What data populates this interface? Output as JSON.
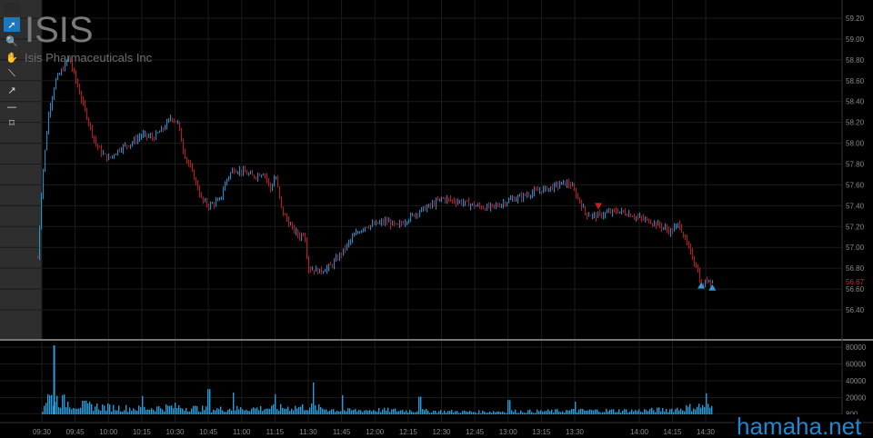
{
  "header": {
    "ticker": "ISIS",
    "company": "Isis Pharmaceuticals Inc"
  },
  "watermark": "hamaha.net",
  "toolbar": [
    {
      "name": "pointer-tool-icon",
      "glyph": "➚",
      "active": true
    },
    {
      "name": "zoom-tool-icon",
      "glyph": "🔍",
      "active": false
    },
    {
      "name": "pan-hand-tool-icon",
      "glyph": "✋",
      "active": false
    },
    {
      "name": "line-tool-icon",
      "glyph": "⟍",
      "active": false
    },
    {
      "name": "arrow-tool-icon",
      "glyph": "↗",
      "active": false
    },
    {
      "name": "horizontal-line-tool-icon",
      "glyph": "—",
      "active": false
    },
    {
      "name": "rectangle-tool-icon",
      "glyph": "⌑",
      "active": false
    }
  ],
  "colors": {
    "up": "#2a9bd8",
    "down": "#c8202a",
    "grid": "#1b1b1b",
    "text": "#8a8a8a",
    "price_label": "#d12a2a",
    "volume": "#2a9bd8"
  },
  "chart_data": [
    {
      "type": "candlestick",
      "title": "",
      "ylim": [
        56.4,
        59.2
      ],
      "y_ticks": [
        "59.20",
        "59.00",
        "58.80",
        "58.60",
        "58.40",
        "58.20",
        "58.00",
        "57.80",
        "57.60",
        "57.40",
        "57.20",
        "57.00",
        "56.80",
        "56.60",
        "56.40"
      ],
      "last_price": "56.67",
      "x_ticks": [
        "09:30",
        "09:45",
        "10:00",
        "10:15",
        "10:30",
        "10:45",
        "11:00",
        "11:15",
        "11:30",
        "11:45",
        "12:00",
        "12:15",
        "12:30",
        "12:45",
        "13:00",
        "13:15",
        "13:30",
        "14:00",
        "14:15",
        "14:30"
      ],
      "price_path": [
        [
          "09:28",
          56.9
        ],
        [
          "09:30",
          57.65
        ],
        [
          "09:33",
          58.3
        ],
        [
          "09:36",
          58.6
        ],
        [
          "09:39",
          58.7
        ],
        [
          "09:42",
          58.82
        ],
        [
          "09:45",
          58.62
        ],
        [
          "09:48",
          58.4
        ],
        [
          "09:51",
          58.2
        ],
        [
          "09:54",
          58.0
        ],
        [
          "09:57",
          57.9
        ],
        [
          "10:00",
          57.85
        ],
        [
          "10:05",
          57.95
        ],
        [
          "10:10",
          58.0
        ],
        [
          "10:15",
          58.08
        ],
        [
          "10:20",
          58.05
        ],
        [
          "10:25",
          58.15
        ],
        [
          "10:28",
          58.25
        ],
        [
          "10:31",
          58.2
        ],
        [
          "10:34",
          57.9
        ],
        [
          "10:38",
          57.7
        ],
        [
          "10:42",
          57.45
        ],
        [
          "10:45",
          57.4
        ],
        [
          "10:50",
          57.45
        ],
        [
          "10:53",
          57.65
        ],
        [
          "10:56",
          57.75
        ],
        [
          "11:00",
          57.73
        ],
        [
          "11:05",
          57.68
        ],
        [
          "11:10",
          57.72
        ],
        [
          "11:13",
          57.55
        ],
        [
          "11:15",
          57.7
        ],
        [
          "11:18",
          57.35
        ],
        [
          "11:22",
          57.2
        ],
        [
          "11:26",
          57.1
        ],
        [
          "11:28",
          57.15
        ],
        [
          "11:30",
          56.8
        ],
        [
          "11:35",
          56.77
        ],
        [
          "11:40",
          56.82
        ],
        [
          "11:45",
          56.95
        ],
        [
          "11:50",
          57.1
        ],
        [
          "11:55",
          57.2
        ],
        [
          "12:00",
          57.22
        ],
        [
          "12:05",
          57.25
        ],
        [
          "12:10",
          57.2
        ],
        [
          "12:15",
          57.28
        ],
        [
          "12:20",
          57.35
        ],
        [
          "12:25",
          57.4
        ],
        [
          "12:30",
          57.47
        ],
        [
          "12:35",
          57.45
        ],
        [
          "12:40",
          57.43
        ],
        [
          "12:45",
          57.4
        ],
        [
          "12:50",
          57.38
        ],
        [
          "12:55",
          57.4
        ],
        [
          "13:00",
          57.45
        ],
        [
          "13:05",
          57.48
        ],
        [
          "13:10",
          57.52
        ],
        [
          "13:15",
          57.55
        ],
        [
          "13:20",
          57.58
        ],
        [
          "13:25",
          57.62
        ],
        [
          "13:28",
          57.6
        ],
        [
          "13:32",
          57.45
        ],
        [
          "13:35",
          57.32
        ],
        [
          "13:40",
          57.3
        ],
        [
          "13:45",
          57.33
        ],
        [
          "13:50",
          57.35
        ],
        [
          "13:55",
          57.32
        ],
        [
          "14:00",
          57.28
        ],
        [
          "14:05",
          57.25
        ],
        [
          "14:10",
          57.2
        ],
        [
          "14:14",
          57.15
        ],
        [
          "14:18",
          57.23
        ],
        [
          "14:20",
          57.1
        ],
        [
          "14:23",
          56.95
        ],
        [
          "14:26",
          56.8
        ],
        [
          "14:28",
          56.62
        ],
        [
          "14:31",
          56.7
        ],
        [
          "14:33",
          56.67
        ]
      ],
      "markers": [
        {
          "time": "13:41",
          "price": 57.4,
          "shape": "down-triangle",
          "color": "#c8202a"
        },
        {
          "time": "14:28",
          "price": 56.64,
          "shape": "up-triangle",
          "color": "#2a9bd8"
        },
        {
          "time": "14:33",
          "price": 56.62,
          "shape": "up-triangle",
          "color": "#2a9bd8"
        }
      ]
    },
    {
      "type": "bar",
      "title": "",
      "ylim": [
        0,
        88000
      ],
      "y_ticks": [
        "80000",
        "60000",
        "40000",
        "20000",
        "800"
      ],
      "volume_profile": [
        [
          "09:28",
          0
        ],
        [
          "09:29",
          82000
        ],
        [
          "09:30",
          6000
        ],
        [
          "09:32",
          28000
        ],
        [
          "09:40",
          20000
        ],
        [
          "09:45",
          15000
        ],
        [
          "10:00",
          11000
        ],
        [
          "10:15",
          9000
        ],
        [
          "10:30",
          12000
        ],
        [
          "10:45",
          8000
        ],
        [
          "11:00",
          9000
        ],
        [
          "11:15",
          10000
        ],
        [
          "11:30",
          12000
        ],
        [
          "11:45",
          6000
        ],
        [
          "12:00",
          7000
        ],
        [
          "12:15",
          6000
        ],
        [
          "12:30",
          5000
        ],
        [
          "12:45",
          4000
        ],
        [
          "13:00",
          5000
        ],
        [
          "13:15",
          5000
        ],
        [
          "13:30",
          6000
        ],
        [
          "14:00",
          6000
        ],
        [
          "14:15",
          8000
        ],
        [
          "14:30",
          14000
        ],
        [
          "14:33",
          8000
        ]
      ],
      "volume_spikes": [
        [
          "09:29",
          82000
        ],
        [
          "10:15",
          22000
        ],
        [
          "10:45",
          30000
        ],
        [
          "10:56",
          26000
        ],
        [
          "11:15",
          24000
        ],
        [
          "11:32",
          38000
        ],
        [
          "11:45",
          23000
        ],
        [
          "12:20",
          21000
        ],
        [
          "13:00",
          17000
        ],
        [
          "13:30",
          15000
        ],
        [
          "14:30",
          25000
        ]
      ]
    }
  ]
}
